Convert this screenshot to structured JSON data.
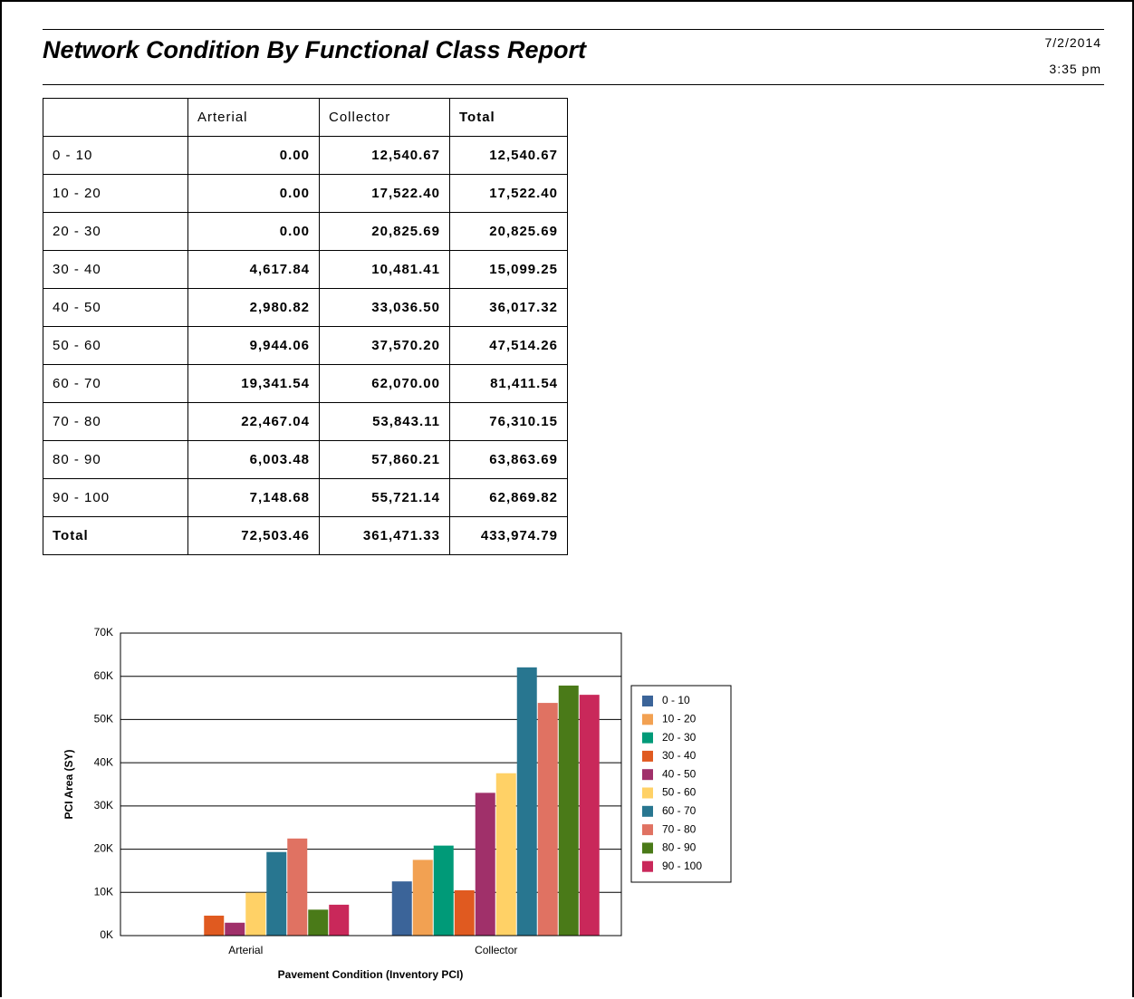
{
  "header": {
    "title": "Network Condition By Functional Class Report",
    "date": "7/2/2014",
    "time": "3:35 pm"
  },
  "table": {
    "columns": [
      "Arterial",
      "Collector",
      "Total"
    ],
    "rows": [
      [
        "0 - 10",
        "0.00",
        "12,540.67",
        "12,540.67"
      ],
      [
        "10 - 20",
        "0.00",
        "17,522.40",
        "17,522.40"
      ],
      [
        "20 - 30",
        "0.00",
        "20,825.69",
        "20,825.69"
      ],
      [
        "30 - 40",
        "4,617.84",
        "10,481.41",
        "15,099.25"
      ],
      [
        "40 - 50",
        "2,980.82",
        "33,036.50",
        "36,017.32"
      ],
      [
        "50 - 60",
        "9,944.06",
        "37,570.20",
        "47,514.26"
      ],
      [
        "60 - 70",
        "19,341.54",
        "62,070.00",
        "81,411.54"
      ],
      [
        "70 - 80",
        "22,467.04",
        "53,843.11",
        "76,310.15"
      ],
      [
        "80 - 90",
        "6,003.48",
        "57,860.21",
        "63,863.69"
      ],
      [
        "90 - 100",
        "7,148.68",
        "55,721.14",
        "62,869.82"
      ],
      [
        "Total",
        "72,503.46",
        "361,471.33",
        "433,974.79"
      ]
    ]
  },
  "chart_data": {
    "type": "bar",
    "xlabel": "Pavement Condition (Inventory PCI)",
    "ylabel": "PCI Area (SY)",
    "categories": [
      "Arterial",
      "Collector"
    ],
    "series": [
      {
        "name": "0 - 10",
        "color": "#3b6499",
        "values": [
          0,
          12540.67
        ]
      },
      {
        "name": "10 - 20",
        "color": "#f2a152",
        "values": [
          0,
          17522.4
        ]
      },
      {
        "name": "20 - 30",
        "color": "#009a78",
        "values": [
          0,
          20825.69
        ]
      },
      {
        "name": "30 - 40",
        "color": "#e05a20",
        "values": [
          4617.84,
          10481.41
        ]
      },
      {
        "name": "40 - 50",
        "color": "#a0306a",
        "values": [
          2980.82,
          33036.5
        ]
      },
      {
        "name": "50 - 60",
        "color": "#ffd166",
        "values": [
          9944.06,
          37570.2
        ]
      },
      {
        "name": "60 - 70",
        "color": "#287690",
        "values": [
          19341.54,
          62070.0
        ]
      },
      {
        "name": "70 - 80",
        "color": "#e07262",
        "values": [
          22467.04,
          53843.11
        ]
      },
      {
        "name": "80 - 90",
        "color": "#4a7a18",
        "values": [
          6003.48,
          57860.21
        ]
      },
      {
        "name": "90 - 100",
        "color": "#c9285a",
        "values": [
          7148.68,
          55721.14
        ]
      }
    ],
    "ylim": [
      0,
      70000
    ],
    "yticks": [
      {
        "value": 0,
        "label": "0K"
      },
      {
        "value": 10000,
        "label": "10K"
      },
      {
        "value": 20000,
        "label": "20K"
      },
      {
        "value": 30000,
        "label": "30K"
      },
      {
        "value": 40000,
        "label": "40K"
      },
      {
        "value": 50000,
        "label": "50K"
      },
      {
        "value": 60000,
        "label": "60K"
      },
      {
        "value": 70000,
        "label": "70K"
      }
    ],
    "grid": true,
    "legend": "right"
  }
}
